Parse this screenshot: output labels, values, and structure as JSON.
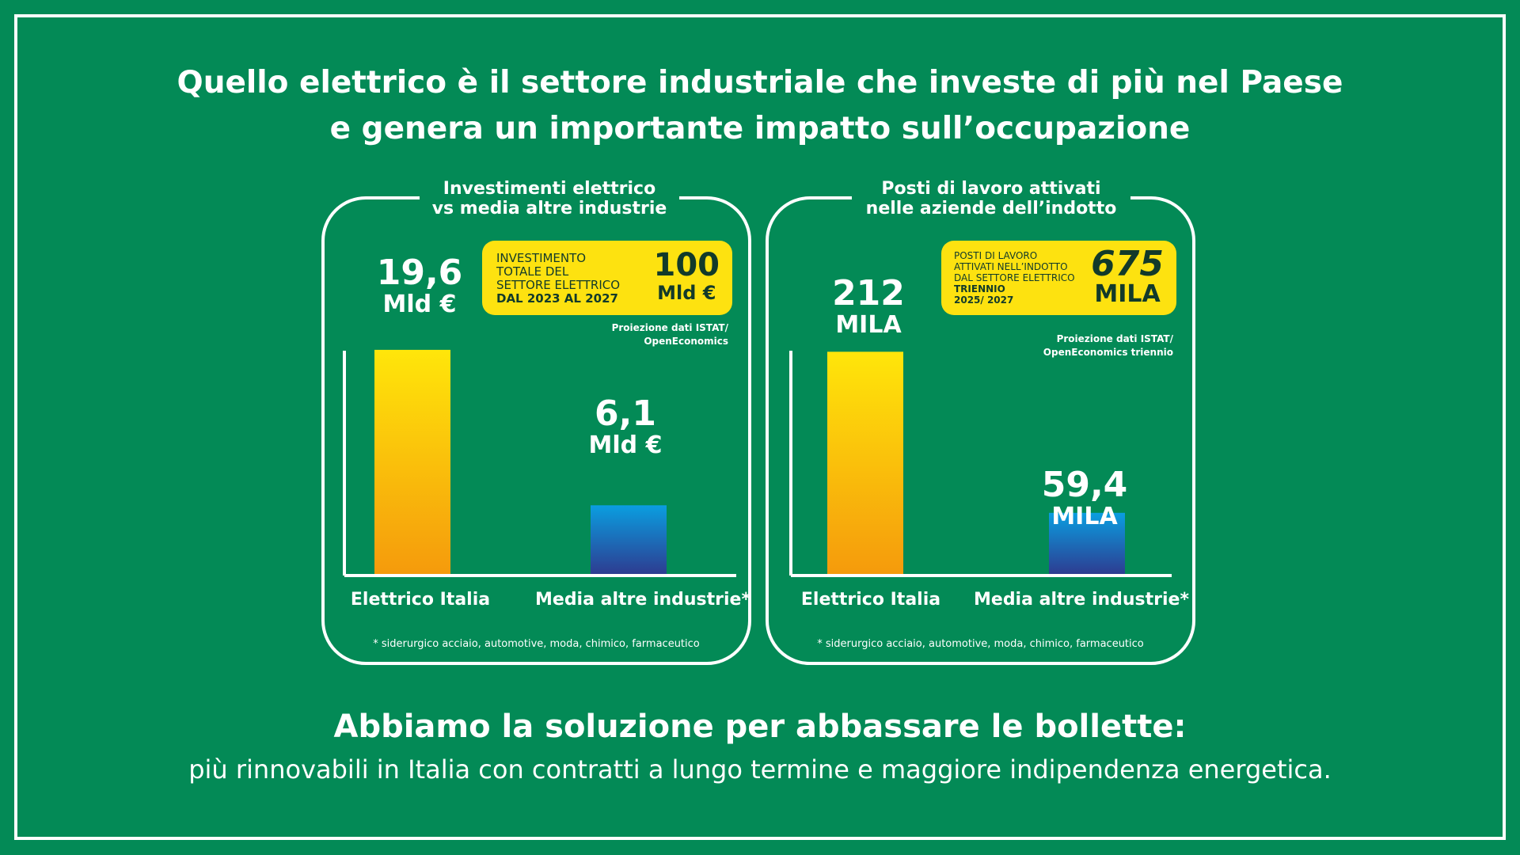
{
  "headline": {
    "line1": "Quello elettrico è il settore industriale che investe di più  nel Paese",
    "line2": "e genera un importante impatto sull’occupazione"
  },
  "colors": {
    "background": "#038a56",
    "highlight": "#fde210",
    "bar_electric_top": "#ffe60a",
    "bar_electric_bottom": "#f59a0c",
    "bar_other_top": "#0a9ee0",
    "bar_other_bottom": "#2e3a8f"
  },
  "chart_data": [
    {
      "type": "bar",
      "title": "Investimenti elettrico vs media altre industrie",
      "title_lines": [
        "Investimenti elettrico",
        "vs media altre industrie"
      ],
      "categories": [
        "Elettrico Italia",
        "Media altre industrie*"
      ],
      "values": [
        19.6,
        6.1
      ],
      "value_labels": [
        "19,6",
        "6,1"
      ],
      "unit_label": "Mld €",
      "ylim": [
        0,
        22
      ],
      "callout": {
        "lines": [
          "INVESTIMENTO",
          "TOTALE DEL",
          "SETTORE ELETTRICO"
        ],
        "strong_line": "DAL 2023 AL 2027",
        "big_value": "100",
        "big_unit": "Mld €"
      },
      "source_lines": [
        "Proiezione dati ISTAT/",
        "OpenEconomics"
      ],
      "footnote": "* siderurgico acciaio, automotive, moda, chimico, farmaceutico"
    },
    {
      "type": "bar",
      "title": "Posti di lavoro attivati nelle aziende dell’indotto",
      "title_lines": [
        "Posti di lavoro attivati",
        "nelle aziende dell’indotto"
      ],
      "categories": [
        "Elettrico Italia",
        "Media altre industrie*"
      ],
      "values": [
        212,
        59.4
      ],
      "value_labels": [
        "212",
        "59,4"
      ],
      "unit_label": "MILA",
      "ylim": [
        0,
        240
      ],
      "callout": {
        "lines": [
          "POSTI DI LAVORO",
          "ATTIVATI NELL’INDOTTO",
          "DAL SETTORE ELETTRICO"
        ],
        "strong_lines": [
          "TRIENNIO",
          "2025/ 2027"
        ],
        "big_value": "675",
        "big_unit": "MILA"
      },
      "source_lines": [
        "Proiezione dati ISTAT/",
        "OpenEconomics triennio"
      ],
      "footnote": "* siderurgico acciaio, automotive, moda, chimico, farmaceutico"
    }
  ],
  "closing": {
    "title": "Abbiamo la soluzione per abbassare le bollette:",
    "subtitle": "più rinnovabili in Italia con contratti a lungo termine e maggiore indipendenza energetica."
  }
}
